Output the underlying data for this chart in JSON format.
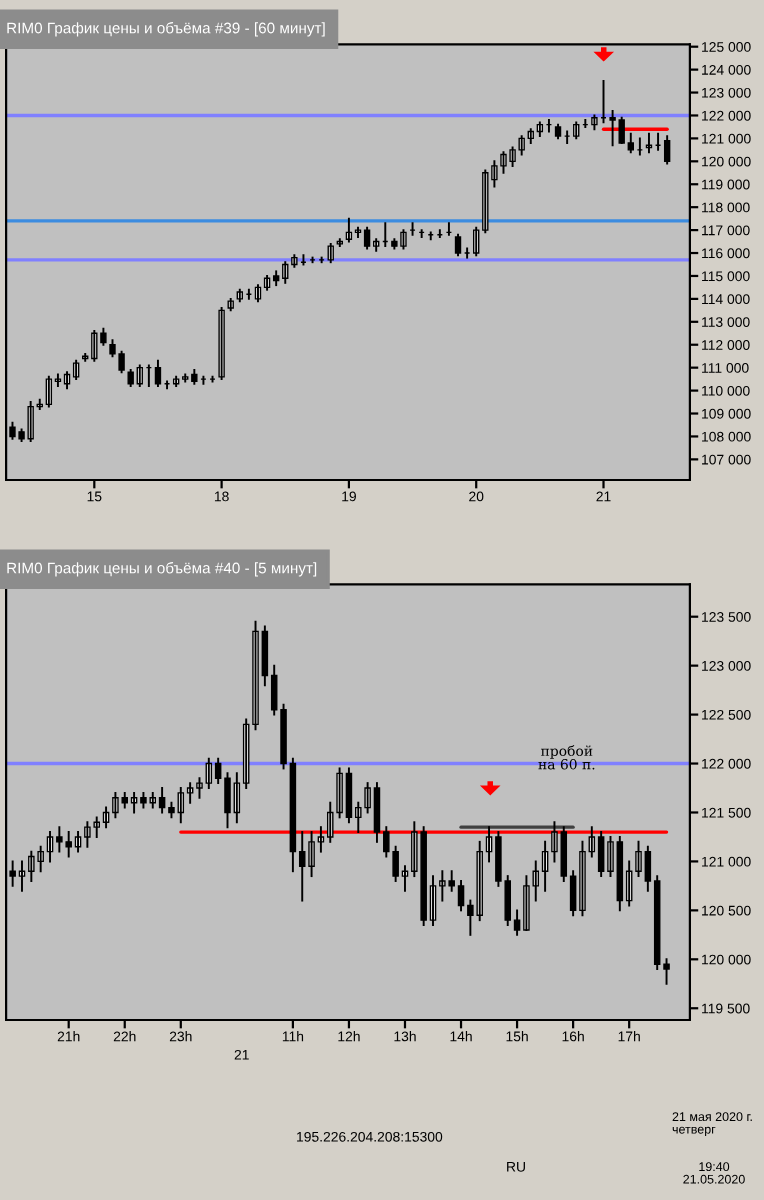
{
  "chart_data": [
    {
      "type": "candlestick",
      "title": "RIM0 График цены и объёма #39 - [60 минут]",
      "categories": [
        null,
        null,
        null,
        null,
        null,
        null,
        null,
        null,
        null,
        "15",
        null,
        null,
        null,
        null,
        null,
        null,
        null,
        null,
        null,
        null,
        null,
        null,
        null,
        "18",
        null,
        null,
        null,
        null,
        null,
        null,
        null,
        null,
        null,
        null,
        null,
        null,
        null,
        "19",
        null,
        null,
        null,
        null,
        null,
        null,
        null,
        null,
        null,
        null,
        null,
        null,
        null,
        "20",
        null,
        null,
        null,
        null,
        null,
        null,
        null,
        null,
        null,
        null,
        null,
        null,
        null,
        "21",
        null,
        null,
        null,
        null,
        null,
        null,
        null
      ],
      "ohlc": [
        [
          108400,
          108600,
          107900,
          108000
        ],
        [
          108200,
          108300,
          107800,
          107900
        ],
        [
          107900,
          109500,
          107800,
          109300
        ],
        [
          109300,
          109600,
          109200,
          109400
        ],
        [
          109400,
          110600,
          109300,
          110500
        ],
        [
          110400,
          110700,
          110200,
          110500
        ],
        [
          110300,
          110800,
          110100,
          110700
        ],
        [
          110600,
          111300,
          110500,
          111200
        ],
        [
          111400,
          111600,
          111300,
          111500
        ],
        [
          111400,
          112600,
          111300,
          112500
        ],
        [
          112500,
          112700,
          112000,
          112100
        ],
        [
          112000,
          112200,
          111500,
          111600
        ],
        [
          111600,
          111700,
          110800,
          110900
        ],
        [
          110800,
          110900,
          110200,
          110300
        ],
        [
          110300,
          111100,
          110200,
          111000
        ],
        [
          111000,
          111100,
          110200,
          111000
        ],
        [
          111000,
          111300,
          110200,
          110300
        ],
        [
          110300,
          110400,
          110100,
          110300
        ],
        [
          110300,
          110600,
          110200,
          110500
        ],
        [
          110500,
          110700,
          110400,
          110600
        ],
        [
          110700,
          110900,
          110300,
          110400
        ],
        [
          110500,
          110600,
          110300,
          110500
        ],
        [
          110500,
          110600,
          110400,
          110500
        ],
        [
          110600,
          113600,
          110500,
          113500
        ],
        [
          113600,
          114000,
          113500,
          113900
        ],
        [
          114000,
          114400,
          113900,
          114300
        ],
        [
          114200,
          114400,
          114000,
          114200
        ],
        [
          114000,
          114600,
          113900,
          114500
        ],
        [
          114500,
          115000,
          114400,
          114900
        ],
        [
          115000,
          115200,
          114600,
          114800
        ],
        [
          114900,
          115600,
          114700,
          115500
        ],
        [
          115500,
          115900,
          115400,
          115800
        ],
        [
          115600,
          115900,
          115500,
          115600
        ],
        [
          115700,
          115800,
          115600,
          115700
        ],
        [
          115700,
          115800,
          115600,
          115700
        ],
        [
          115700,
          116400,
          115600,
          116300
        ],
        [
          116400,
          116600,
          116300,
          116500
        ],
        [
          116600,
          117500,
          116500,
          116900
        ],
        [
          116900,
          117100,
          116700,
          117000
        ],
        [
          117000,
          117100,
          116200,
          116300
        ],
        [
          116300,
          116600,
          116100,
          116500
        ],
        [
          116500,
          117300,
          116300,
          116500
        ],
        [
          116500,
          116600,
          116200,
          116300
        ],
        [
          116300,
          117000,
          116200,
          116900
        ],
        [
          117000,
          117300,
          116800,
          117000
        ],
        [
          116900,
          117000,
          116700,
          116900
        ],
        [
          116800,
          116900,
          116600,
          116800
        ],
        [
          116800,
          117000,
          116700,
          116800
        ],
        [
          116900,
          117300,
          116800,
          116900
        ],
        [
          116700,
          116800,
          115900,
          116000
        ],
        [
          116000,
          116200,
          115800,
          116000
        ],
        [
          116000,
          117100,
          115900,
          117000
        ],
        [
          117000,
          119600,
          116900,
          119500
        ],
        [
          119200,
          120000,
          118900,
          119800
        ],
        [
          119800,
          120400,
          119500,
          120300
        ],
        [
          120000,
          120600,
          119800,
          120500
        ],
        [
          120500,
          121100,
          120300,
          121000
        ],
        [
          121000,
          121400,
          120800,
          121300
        ],
        [
          121300,
          121700,
          121100,
          121600
        ],
        [
          121600,
          121800,
          121300,
          121600
        ],
        [
          121500,
          121600,
          121000,
          121100
        ],
        [
          121100,
          121300,
          120800,
          121100
        ],
        [
          121100,
          121700,
          121000,
          121600
        ],
        [
          121600,
          121800,
          121500,
          121600
        ],
        [
          121600,
          122000,
          121400,
          121900
        ],
        [
          121900,
          123500,
          121700,
          121900
        ],
        [
          121900,
          122200,
          120700,
          121800
        ],
        [
          121800,
          121900,
          120800,
          120800
        ],
        [
          120800,
          121200,
          120400,
          120500
        ],
        [
          120500,
          121000,
          120300,
          120500
        ],
        [
          120600,
          121200,
          120400,
          120700
        ],
        [
          120700,
          121200,
          120500,
          120700
        ],
        [
          120900,
          121100,
          119900,
          120000
        ]
      ],
      "series": [
        {
          "type": "line",
          "color": "#ff0000",
          "values": [
            null,
            null,
            null,
            null,
            null,
            null,
            null,
            null,
            null,
            null,
            null,
            null,
            null,
            null,
            null,
            null,
            null,
            null,
            null,
            null,
            null,
            null,
            null,
            null,
            null,
            null,
            null,
            null,
            null,
            null,
            null,
            null,
            null,
            null,
            null,
            null,
            null,
            null,
            null,
            null,
            null,
            null,
            null,
            null,
            null,
            null,
            null,
            null,
            null,
            null,
            null,
            null,
            null,
            null,
            null,
            null,
            null,
            null,
            null,
            null,
            null,
            null,
            null,
            null,
            null,
            121400,
            121400,
            121400,
            121400,
            121400,
            121400,
            121400,
            121400
          ]
        }
      ],
      "ref_lines": [
        {
          "axis": "y",
          "value": 122000,
          "color": "#8080ff"
        },
        {
          "axis": "y",
          "value": 117400,
          "color": "#3c8ce0"
        },
        {
          "axis": "y",
          "value": 115700,
          "color": "#8080ff"
        }
      ],
      "ylim": [
        106100,
        125100
      ],
      "yticks": [
        {
          "value": 107000,
          "label": "107 000"
        },
        {
          "value": 108000,
          "label": "108 000"
        },
        {
          "value": 109000,
          "label": "109 000"
        },
        {
          "value": 110000,
          "label": "110 000"
        },
        {
          "value": 111000,
          "label": "111 000"
        },
        {
          "value": 112000,
          "label": "112 000"
        },
        {
          "value": 113000,
          "label": "113 000"
        },
        {
          "value": 114000,
          "label": "114 000"
        },
        {
          "value": 115000,
          "label": "115 000"
        },
        {
          "value": 116000,
          "label": "116 000"
        },
        {
          "value": 117000,
          "label": "117 000"
        },
        {
          "value": 118000,
          "label": "118 000"
        },
        {
          "value": 119000,
          "label": "119 000"
        },
        {
          "value": 120000,
          "label": "120 000"
        },
        {
          "value": 121000,
          "label": "121 000"
        },
        {
          "value": 122000,
          "label": "122 000"
        },
        {
          "value": 123000,
          "label": "123 000"
        },
        {
          "value": 124000,
          "label": "124 000"
        },
        {
          "value": 125000,
          "label": "125 000"
        }
      ]
    },
    {
      "type": "candlestick",
      "title": "RIM0 График цены и объёма #40 - [5 минут]",
      "categories": [
        null,
        null,
        null,
        null,
        null,
        null,
        "21h",
        null,
        null,
        null,
        null,
        null,
        "22h",
        null,
        null,
        null,
        null,
        null,
        "23h",
        null,
        null,
        null,
        null,
        null,
        null,
        null,
        null,
        null,
        null,
        null,
        "11h",
        null,
        null,
        null,
        null,
        null,
        "12h",
        null,
        null,
        null,
        null,
        null,
        "13h",
        null,
        null,
        null,
        null,
        null,
        "14h",
        null,
        null,
        null,
        null,
        null,
        "15h",
        null,
        null,
        null,
        null,
        null,
        "16h",
        null,
        null,
        null,
        null,
        null,
        "17h",
        null,
        null,
        null,
        null
      ],
      "ohlc": [
        [
          120900,
          121000,
          120750,
          120850
        ],
        [
          120850,
          121000,
          120700,
          120900
        ],
        [
          120900,
          121100,
          120800,
          121050
        ],
        [
          121000,
          121150,
          120900,
          121100
        ],
        [
          121100,
          121300,
          121000,
          121250
        ],
        [
          121250,
          121350,
          121100,
          121200
        ],
        [
          121200,
          121300,
          121050,
          121150
        ],
        [
          121150,
          121300,
          121100,
          121250
        ],
        [
          121250,
          121400,
          121150,
          121350
        ],
        [
          121350,
          121450,
          121250,
          121400
        ],
        [
          121400,
          121550,
          121350,
          121500
        ],
        [
          121500,
          121700,
          121450,
          121650
        ],
        [
          121650,
          121700,
          121550,
          121600
        ],
        [
          121600,
          121700,
          121500,
          121650
        ],
        [
          121650,
          121700,
          121550,
          121600
        ],
        [
          121600,
          121700,
          121550,
          121650
        ],
        [
          121650,
          121750,
          121500,
          121550
        ],
        [
          121550,
          121600,
          121450,
          121500
        ],
        [
          121500,
          121750,
          121400,
          121700
        ],
        [
          121700,
          121800,
          121600,
          121750
        ],
        [
          121750,
          121850,
          121650,
          121800
        ],
        [
          121800,
          122050,
          121750,
          122000
        ],
        [
          122000,
          122050,
          121800,
          121850
        ],
        [
          121850,
          121900,
          121350,
          121500
        ],
        [
          121500,
          121900,
          121400,
          121800
        ],
        [
          121800,
          122450,
          121750,
          122400
        ],
        [
          122400,
          123450,
          122350,
          123350
        ],
        [
          123350,
          123400,
          122800,
          122900
        ],
        [
          122900,
          123000,
          122500,
          122550
        ],
        [
          122550,
          122600,
          121950,
          122000
        ],
        [
          122000,
          122050,
          120900,
          121100
        ],
        [
          121100,
          121300,
          120600,
          120950
        ],
        [
          120950,
          121300,
          120850,
          121200
        ],
        [
          121200,
          121350,
          121100,
          121250
        ],
        [
          121250,
          121600,
          121200,
          121500
        ],
        [
          121500,
          121950,
          121450,
          121900
        ],
        [
          121900,
          121950,
          121400,
          121450
        ],
        [
          121450,
          121600,
          121300,
          121550
        ],
        [
          121550,
          121800,
          121500,
          121750
        ],
        [
          121750,
          121800,
          121200,
          121300
        ],
        [
          121300,
          121350,
          121050,
          121100
        ],
        [
          121100,
          121150,
          120800,
          120850
        ],
        [
          120850,
          120950,
          120700,
          120900
        ],
        [
          120900,
          121400,
          120850,
          121300
        ],
        [
          121300,
          121350,
          120350,
          120400
        ],
        [
          120400,
          120850,
          120350,
          120750
        ],
        [
          120750,
          120900,
          120600,
          120800
        ],
        [
          120800,
          120900,
          120700,
          120750
        ],
        [
          120750,
          120800,
          120500,
          120550
        ],
        [
          120550,
          120600,
          120250,
          120450
        ],
        [
          120450,
          121200,
          120400,
          121100
        ],
        [
          121100,
          121350,
          121000,
          121250
        ],
        [
          121250,
          121300,
          120750,
          120800
        ],
        [
          120800,
          120850,
          120350,
          120400
        ],
        [
          120400,
          120500,
          120250,
          120300
        ],
        [
          120300,
          120850,
          120300,
          120750
        ],
        [
          120750,
          121000,
          120600,
          120900
        ],
        [
          120900,
          121200,
          120700,
          121100
        ],
        [
          121100,
          121400,
          121000,
          121300
        ],
        [
          121300,
          121350,
          120800,
          120850
        ],
        [
          120850,
          120900,
          120450,
          120500
        ],
        [
          120500,
          121200,
          120450,
          121100
        ],
        [
          121100,
          121350,
          121050,
          121250
        ],
        [
          121250,
          121300,
          120850,
          120900
        ],
        [
          120900,
          121250,
          120850,
          121200
        ],
        [
          121200,
          121250,
          120500,
          120600
        ],
        [
          120600,
          121000,
          120550,
          120900
        ],
        [
          120900,
          121200,
          120850,
          121100
        ],
        [
          121100,
          121150,
          120700,
          120800
        ],
        [
          120800,
          120850,
          119900,
          119950
        ],
        [
          119950,
          120000,
          119750,
          119900
        ]
      ],
      "series": [
        {
          "type": "line",
          "color": "#ff0000",
          "values": [
            null,
            null,
            null,
            null,
            null,
            null,
            null,
            null,
            null,
            null,
            null,
            null,
            null,
            null,
            null,
            null,
            null,
            null,
            121300,
            121300,
            121300,
            121300,
            121300,
            121300,
            121300,
            121300,
            121300,
            121300,
            121300,
            121300,
            121300,
            121300,
            121300,
            121300,
            121300,
            121300,
            121300,
            121300,
            121300,
            121300,
            121300,
            121300,
            121300,
            121300,
            121300,
            121300,
            121300,
            121300,
            121300,
            121300,
            121300,
            121300,
            121300,
            121300,
            121300,
            121300,
            121300,
            121300,
            121300,
            121300,
            121300,
            121300,
            121300,
            121300,
            121300,
            121300,
            121300,
            121300,
            121300,
            121300,
            121300
          ]
        },
        {
          "type": "line",
          "color": "#404040",
          "values": [
            null,
            null,
            null,
            null,
            null,
            null,
            null,
            null,
            null,
            null,
            null,
            null,
            null,
            null,
            null,
            null,
            null,
            null,
            null,
            null,
            null,
            null,
            null,
            null,
            null,
            null,
            null,
            null,
            null,
            null,
            null,
            null,
            null,
            null,
            null,
            null,
            null,
            null,
            null,
            null,
            null,
            null,
            null,
            null,
            null,
            null,
            null,
            null,
            121350,
            121350,
            121350,
            121350,
            121350,
            121350,
            121350,
            121350,
            121350,
            121350,
            121350,
            121350,
            121350,
            null,
            null,
            null,
            null,
            null,
            null,
            null,
            null,
            null,
            null
          ]
        }
      ],
      "ref_lines": [
        {
          "axis": "y",
          "value": 122000,
          "color": "#8080ff"
        }
      ],
      "ylim": [
        119380,
        123830
      ],
      "yticks": [
        {
          "value": 119500,
          "label": "119 500"
        },
        {
          "value": 120000,
          "label": "120 000"
        },
        {
          "value": 120500,
          "label": "120 500"
        },
        {
          "value": 121000,
          "label": "121 000"
        },
        {
          "value": 121500,
          "label": "121 500"
        },
        {
          "value": 122000,
          "label": "122 000"
        },
        {
          "value": 122500,
          "label": "122 500"
        },
        {
          "value": 123000,
          "label": "123 000"
        },
        {
          "value": 123500,
          "label": "123 500"
        }
      ],
      "annotations": [
        "пробой\nна 60 п.",
        "21",
        "195.226.204.208:15300",
        "21 мая 2020 г.\nчетверг",
        "RU",
        "19:40\n21.05.2020"
      ]
    }
  ]
}
